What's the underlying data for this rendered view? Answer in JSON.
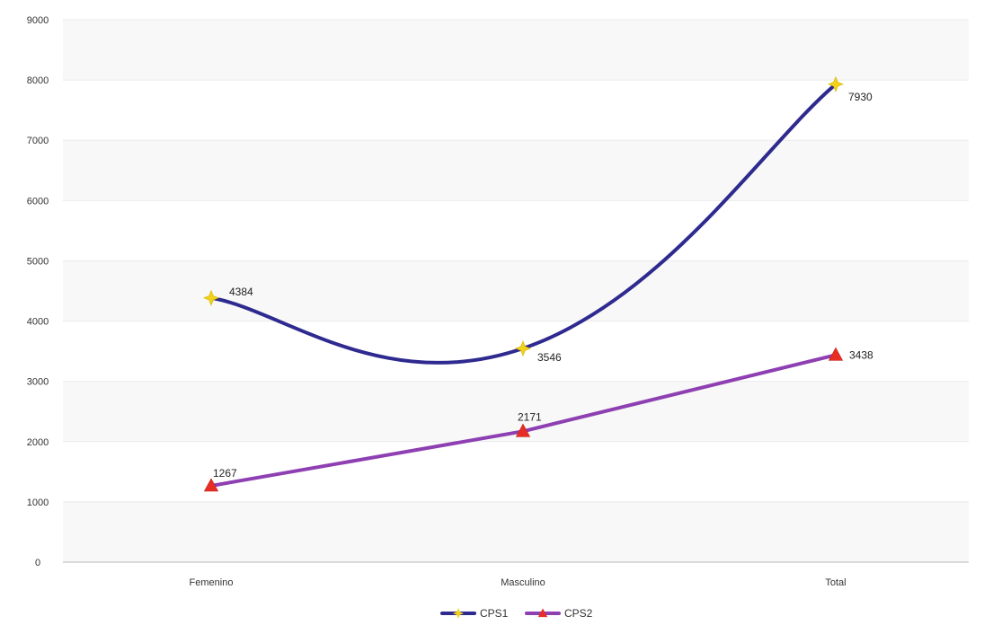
{
  "chart_data": {
    "type": "line",
    "categories": [
      "Femenino",
      "Masculino",
      "Total"
    ],
    "series": [
      {
        "name": "CPS1",
        "values": [
          4384,
          3546,
          7930
        ],
        "line_color": "#2E2A8F",
        "marker_color": "#F2D21B",
        "marker": "star",
        "smooth": true
      },
      {
        "name": "CPS2",
        "values": [
          1267,
          2171,
          3438
        ],
        "line_color": "#8E3FB2",
        "marker_color": "#E62E24",
        "marker": "triangle",
        "smooth": false
      }
    ],
    "ylim": [
      0,
      9000
    ],
    "yticks": [
      0,
      1000,
      2000,
      3000,
      4000,
      5000,
      6000,
      7000,
      8000,
      9000
    ],
    "grid": true,
    "legend_position": "bottom",
    "title": "",
    "xlabel": "",
    "ylabel": ""
  }
}
